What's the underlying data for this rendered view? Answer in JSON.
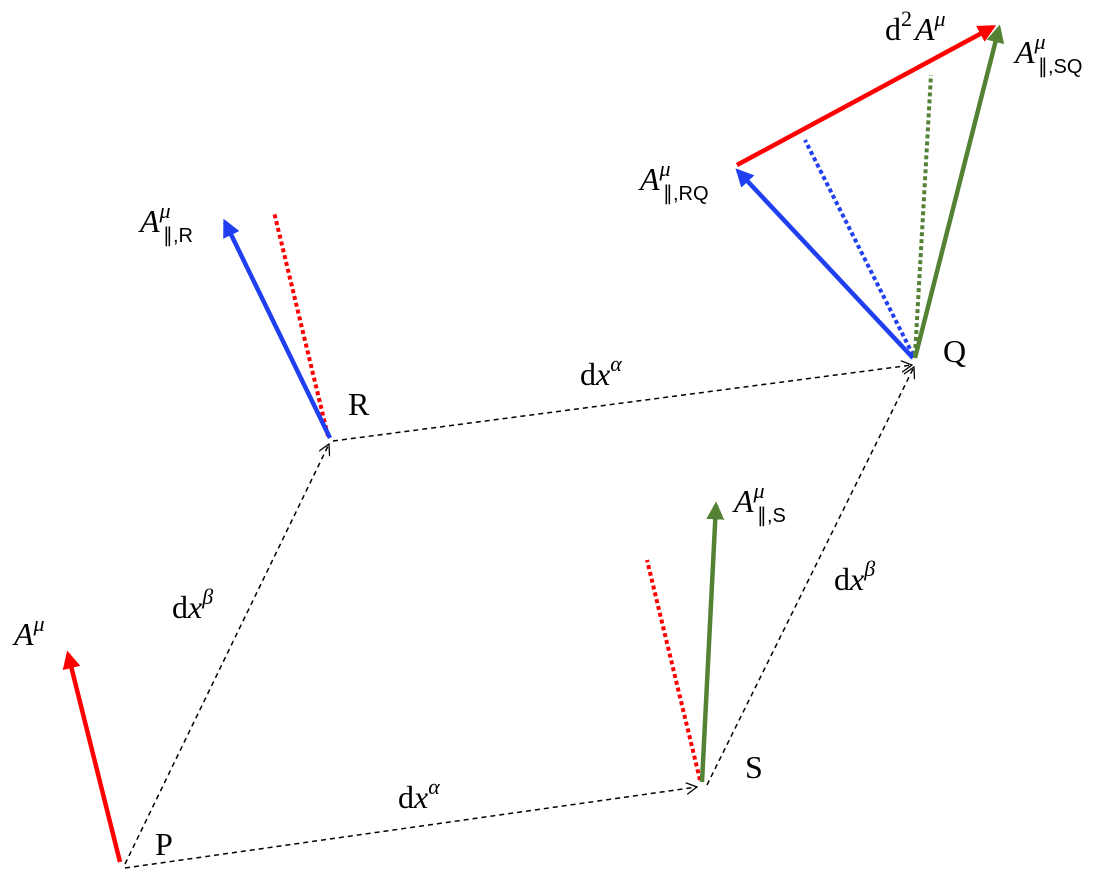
{
  "points": [
    "P",
    "R",
    "S",
    "Q"
  ],
  "vectors": [
    {
      "var": "A",
      "sup": "μ"
    },
    {
      "var": "A",
      "sup": "μ",
      "sub": "∥,R"
    },
    {
      "var": "A",
      "sup": "μ",
      "sub": "∥,S"
    },
    {
      "var": "A",
      "sup": "μ",
      "sub": "∥,RQ"
    },
    {
      "var": "A",
      "sup": "μ",
      "sub": "∥,SQ"
    }
  ],
  "difference": {
    "d": "d",
    "d_sup": "2",
    "var": "A",
    "sup": "μ"
  },
  "displacements": [
    {
      "d": "d",
      "var": "x",
      "sup": "β"
    },
    {
      "d": "d",
      "var": "x",
      "sup": "α"
    },
    {
      "d": "d",
      "var": "x",
      "sup": "α"
    },
    {
      "d": "d",
      "var": "x",
      "sup": "β"
    }
  ]
}
